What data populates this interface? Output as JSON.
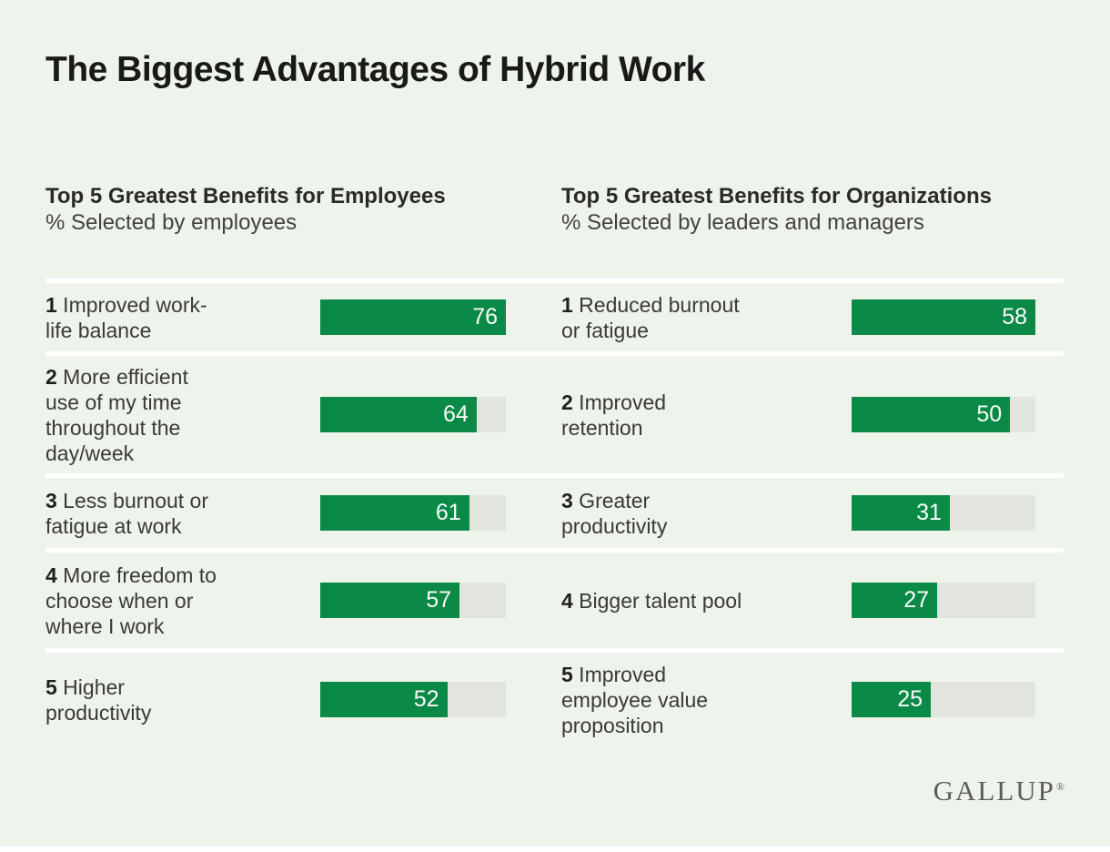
{
  "title": "The Biggest Advantages of Hybrid Work",
  "brand": {
    "logo_text": "GALLUP",
    "registered_mark": "®"
  },
  "colors": {
    "background": "#eef4ec",
    "bar_green": "#0a8a46",
    "track_gray": "#e2e4de",
    "divider_white": "#ffffff"
  },
  "chart_data": {
    "type": "bar",
    "orientation": "horizontal",
    "value_unit": "%",
    "grid": "off",
    "panels": [
      {
        "title": "Top 5 Greatest Benefits for Employees",
        "subtitle": "% Selected by employees",
        "xmax": 76,
        "items": [
          {
            "rank": "1",
            "label": "Improved work-life balance",
            "value": 76
          },
          {
            "rank": "2",
            "label": "More efficient use of my time throughout the day/week",
            "value": 64
          },
          {
            "rank": "3",
            "label": "Less burnout or fatigue at work",
            "value": 61
          },
          {
            "rank": "4",
            "label": "More freedom to choose when or where I work",
            "value": 57
          },
          {
            "rank": "5",
            "label": "Higher productivity",
            "value": 52
          }
        ]
      },
      {
        "title": "Top 5 Greatest Benefits for Organizations",
        "subtitle": "% Selected by leaders and managers",
        "xmax": 58,
        "items": [
          {
            "rank": "1",
            "label": "Reduced burnout or fatigue",
            "value": 58
          },
          {
            "rank": "2",
            "label": "Improved retention",
            "value": 50
          },
          {
            "rank": "3",
            "label": "Greater productivity",
            "value": 31
          },
          {
            "rank": "4",
            "label": "Bigger talent pool",
            "value": 27
          },
          {
            "rank": "5",
            "label": "Improved employee value proposition",
            "value": 25
          }
        ]
      }
    ]
  }
}
